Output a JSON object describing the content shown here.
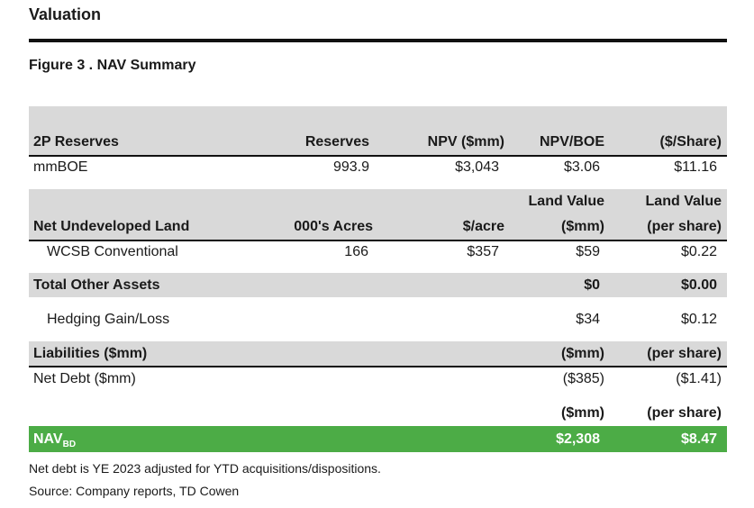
{
  "header": {
    "section_title": "Valuation",
    "figure_title": "Figure 3 . NAV Summary"
  },
  "reserves": {
    "headers": [
      "2P Reserves",
      "Reserves",
      "NPV ($mm)",
      "NPV/BOE",
      "($/Share)"
    ],
    "row": [
      "mmBOE",
      "993.9",
      "$3,043",
      "$3.06",
      "$11.16"
    ]
  },
  "land": {
    "headers_top": [
      "Land Value",
      "Land Value"
    ],
    "headers": [
      "Net Undeveloped Land",
      "000's Acres",
      "$/acre",
      "($mm)",
      "(per share)"
    ],
    "row": [
      "WCSB Conventional",
      "166",
      "$357",
      "$59",
      "$0.22"
    ]
  },
  "other_assets": {
    "label": "Total Other Assets",
    "value_mm": "$0",
    "value_ps": "$0.00",
    "hedging": [
      "Hedging Gain/Loss",
      "$34",
      "$0.12"
    ]
  },
  "liabilities": {
    "headers": [
      "Liabilities ($mm)",
      "($mm)",
      "(per share)"
    ],
    "row": [
      "Net Debt ($mm)",
      "($385)",
      "($1.41)"
    ]
  },
  "nav": {
    "headers": [
      "($mm)",
      "(per share)"
    ],
    "label": "NAV",
    "label_sub": "BD",
    "value_mm": "$2,308",
    "value_ps": "$8.47"
  },
  "notes": [
    "Net debt is YE 2023 adjusted for YTD acquisitions/dispositions.",
    "Source: Company reports, TD Cowen"
  ]
}
